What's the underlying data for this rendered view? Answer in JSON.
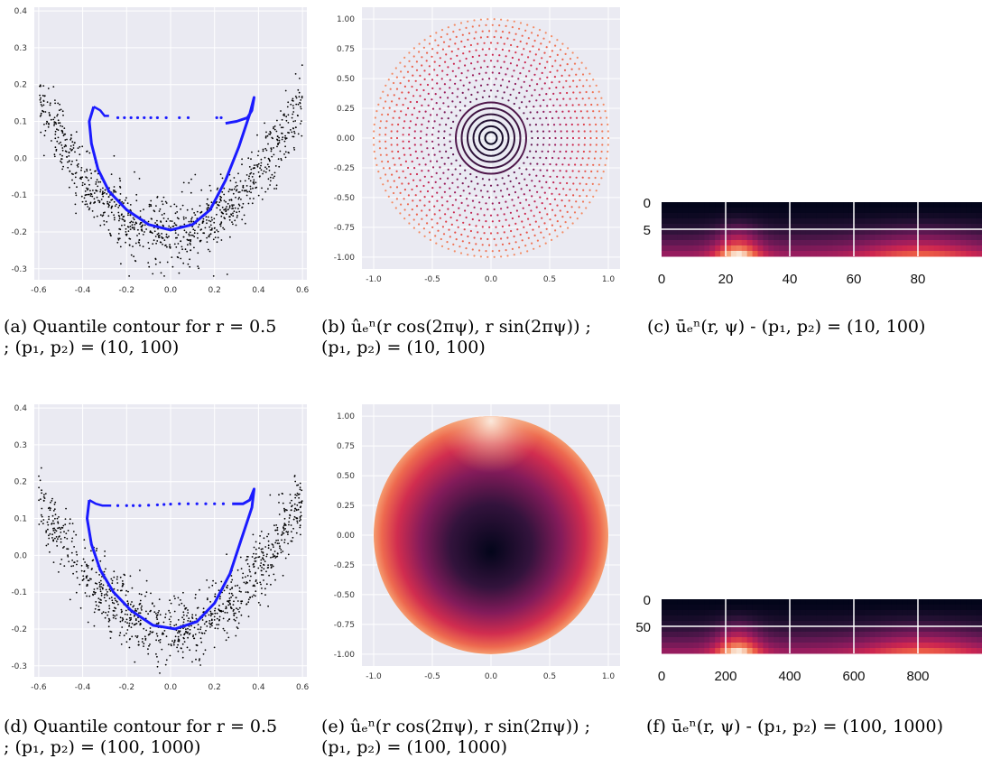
{
  "captions": {
    "a": {
      "line1": "(a) Quantile contour for r = 0.5",
      "line2": "; (p₁, p₂) = (10, 100)"
    },
    "b": {
      "line1": "(b) ûₑⁿ(r cos(2πψ), r sin(2πψ)) ;",
      "line2": "(p₁, p₂) = (10, 100)"
    },
    "c": {
      "line1": "(c) ūₑⁿ(r, ψ) - (p₁, p₂) = (10, 100)"
    },
    "d": {
      "line1": "(d) Quantile contour for r = 0.5",
      "line2": "; (p₁, p₂) = (100, 1000)"
    },
    "e": {
      "line1": "(e) ûₑⁿ(r cos(2πψ), r sin(2πψ)) ;",
      "line2": "(p₁, p₂) = (100, 1000)"
    },
    "f": {
      "line1": "(f) ūₑⁿ(r, ψ) - (p₁, p₂) = (100, 1000)"
    }
  },
  "colors": {
    "axes_bg": "#eaeaf2",
    "grid": "#ffffff",
    "points": "#000000",
    "contour": "#1a1aff"
  },
  "chart_data": [
    {
      "id": "a",
      "type": "scatter",
      "xlim": [
        -0.62,
        0.62
      ],
      "ylim": [
        -0.33,
        0.41
      ],
      "xticks": [
        "-0.6",
        "-0.4",
        "-0.2",
        "0.0",
        "0.2",
        "0.4",
        "0.6"
      ],
      "yticks": [
        "-0.3",
        "-0.2",
        "-0.1",
        "0.0",
        "0.1",
        "0.2",
        "0.3",
        "0.4"
      ],
      "scatter": {
        "n_points": 1000,
        "model": "y = x^2 - 0.2 + noise",
        "x_range": [
          -0.6,
          0.6
        ],
        "noise_sd": 0.045
      },
      "contour": {
        "color": "#1a1aff",
        "loop": [
          [
            -0.35,
            0.14
          ],
          [
            -0.37,
            0.1
          ],
          [
            -0.36,
            0.04
          ],
          [
            -0.33,
            -0.03
          ],
          [
            -0.28,
            -0.09
          ],
          [
            -0.2,
            -0.14
          ],
          [
            -0.1,
            -0.18
          ],
          [
            0.0,
            -0.195
          ],
          [
            0.1,
            -0.18
          ],
          [
            0.18,
            -0.14
          ],
          [
            0.25,
            -0.06
          ],
          [
            0.31,
            0.03
          ],
          [
            0.36,
            0.12
          ],
          [
            0.38,
            0.165
          ],
          [
            0.37,
            0.13
          ],
          [
            0.35,
            0.11
          ],
          [
            0.3,
            0.1
          ],
          [
            0.25,
            0.095
          ]
        ],
        "hook": [
          [
            -0.35,
            0.14
          ],
          [
            -0.32,
            0.13
          ],
          [
            -0.3,
            0.115
          ],
          [
            -0.28,
            0.115
          ]
        ],
        "gap_points": [
          [
            -0.24,
            0.11
          ],
          [
            -0.21,
            0.11
          ],
          [
            -0.18,
            0.11
          ],
          [
            -0.15,
            0.11
          ],
          [
            -0.12,
            0.11
          ],
          [
            -0.09,
            0.11
          ],
          [
            -0.06,
            0.11
          ],
          [
            -0.02,
            0.11
          ],
          [
            0.04,
            0.11
          ],
          [
            0.08,
            0.11
          ],
          [
            0.21,
            0.11
          ],
          [
            0.23,
            0.11
          ]
        ]
      }
    },
    {
      "id": "b",
      "type": "scatter",
      "xlim": [
        -1.1,
        1.1
      ],
      "ylim": [
        -1.1,
        1.1
      ],
      "xticks": [
        "-1.0",
        "-0.5",
        "0.0",
        "0.5",
        "1.0"
      ],
      "yticks": [
        "-1.00",
        "-0.75",
        "-0.50",
        "-0.25",
        "0.00",
        "0.25",
        "0.50",
        "0.75",
        "1.00"
      ],
      "rings": [
        0.05,
        0.1,
        0.15,
        0.2,
        0.25,
        0.3,
        0.35,
        0.4,
        0.45,
        0.5,
        0.55,
        0.6,
        0.65,
        0.7,
        0.75,
        0.8,
        0.85,
        0.9,
        0.95,
        1.0
      ],
      "colormap": "rocket"
    },
    {
      "id": "c",
      "type": "heatmap",
      "rows": 10,
      "cols": 100,
      "xticks": [
        "0",
        "20",
        "40",
        "60",
        "80"
      ],
      "yticks": [
        "0",
        "5"
      ],
      "colormap": "rocket"
    },
    {
      "id": "d",
      "type": "scatter",
      "xlim": [
        -0.62,
        0.62
      ],
      "ylim": [
        -0.33,
        0.41
      ],
      "xticks": [
        "-0.6",
        "-0.4",
        "-0.2",
        "0.0",
        "0.2",
        "0.4",
        "0.6"
      ],
      "yticks": [
        "-0.3",
        "-0.2",
        "-0.1",
        "0.0",
        "0.1",
        "0.2",
        "0.3",
        "0.4"
      ],
      "scatter": {
        "n_points": 1000,
        "model": "y = x^2 - 0.2 + noise",
        "x_range": [
          -0.6,
          0.6
        ],
        "noise_sd": 0.045
      },
      "contour": {
        "color": "#1a1aff",
        "loop": [
          [
            -0.37,
            0.15
          ],
          [
            -0.38,
            0.1
          ],
          [
            -0.36,
            0.03
          ],
          [
            -0.32,
            -0.04
          ],
          [
            -0.26,
            -0.1
          ],
          [
            -0.18,
            -0.15
          ],
          [
            -0.08,
            -0.19
          ],
          [
            0.02,
            -0.2
          ],
          [
            0.12,
            -0.18
          ],
          [
            0.2,
            -0.13
          ],
          [
            0.27,
            -0.05
          ],
          [
            0.32,
            0.04
          ],
          [
            0.37,
            0.13
          ],
          [
            0.38,
            0.18
          ],
          [
            0.36,
            0.15
          ],
          [
            0.33,
            0.14
          ],
          [
            0.28,
            0.14
          ]
        ],
        "hook": [
          [
            -0.37,
            0.15
          ],
          [
            -0.34,
            0.14
          ],
          [
            -0.31,
            0.135
          ],
          [
            -0.27,
            0.135
          ]
        ],
        "gap_points": [
          [
            -0.24,
            0.135
          ],
          [
            -0.2,
            0.135
          ],
          [
            -0.17,
            0.135
          ],
          [
            -0.14,
            0.135
          ],
          [
            -0.1,
            0.136
          ],
          [
            -0.06,
            0.137
          ],
          [
            -0.03,
            0.138
          ],
          [
            0.0,
            0.139
          ],
          [
            0.04,
            0.14
          ],
          [
            0.08,
            0.14
          ],
          [
            0.12,
            0.14
          ],
          [
            0.16,
            0.14
          ],
          [
            0.2,
            0.14
          ],
          [
            0.24,
            0.14
          ]
        ]
      }
    },
    {
      "id": "e",
      "type": "heatmap",
      "xlim": [
        -1.1,
        1.1
      ],
      "ylim": [
        -1.1,
        1.1
      ],
      "xticks": [
        "-1.0",
        "-0.5",
        "0.0",
        "0.5",
        "1.0"
      ],
      "yticks": [
        "-1.00",
        "-0.75",
        "-0.50",
        "-0.25",
        "0.00",
        "0.25",
        "0.50",
        "0.75",
        "1.00"
      ],
      "colormap": "rocket"
    },
    {
      "id": "f",
      "type": "heatmap",
      "rows": 100,
      "cols": 1000,
      "xticks": [
        "0",
        "200",
        "400",
        "600",
        "800"
      ],
      "yticks": [
        "0",
        "50"
      ],
      "colormap": "rocket"
    }
  ]
}
